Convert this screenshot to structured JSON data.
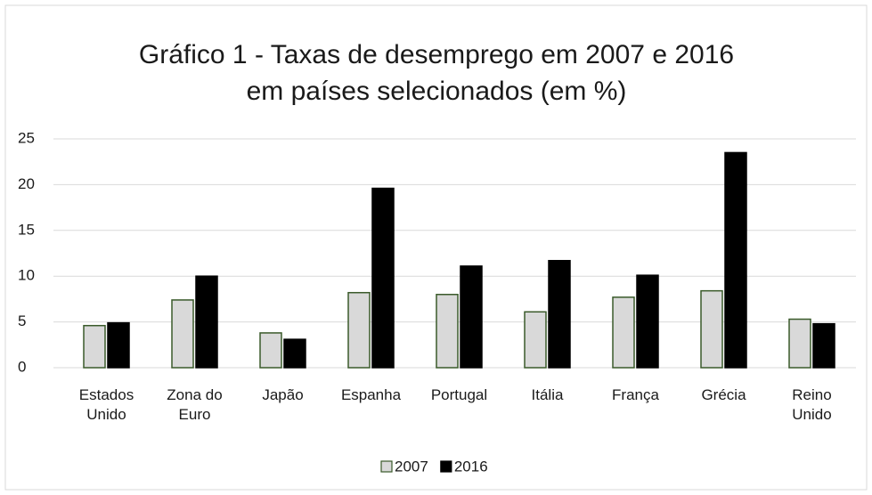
{
  "chart_data": {
    "type": "bar",
    "title": [
      "Gráfico 1 - Taxas de desemprego em 2007 e 2016",
      "em países selecionados (em %)"
    ],
    "categories": [
      "Estados Unido",
      "Zona do Euro",
      "Japão",
      "Espanha",
      "Portugal",
      "Itália",
      "França",
      "Grécia",
      "Reino Unido"
    ],
    "series": [
      {
        "name": "2007",
        "color": "#d9d9d9",
        "edge": "#3a5a2a",
        "values": [
          4.6,
          7.4,
          3.8,
          8.2,
          8.0,
          6.1,
          7.7,
          8.4,
          5.3
        ]
      },
      {
        "name": "2016",
        "color": "#000000",
        "edge": "#000000",
        "values": [
          4.9,
          10.0,
          3.1,
          19.6,
          11.1,
          11.7,
          10.1,
          23.5,
          4.8
        ]
      }
    ],
    "ylim": [
      0,
      25
    ],
    "yticks": [
      0,
      5,
      10,
      15,
      20,
      25
    ],
    "grid": true,
    "legend": "bottom"
  }
}
